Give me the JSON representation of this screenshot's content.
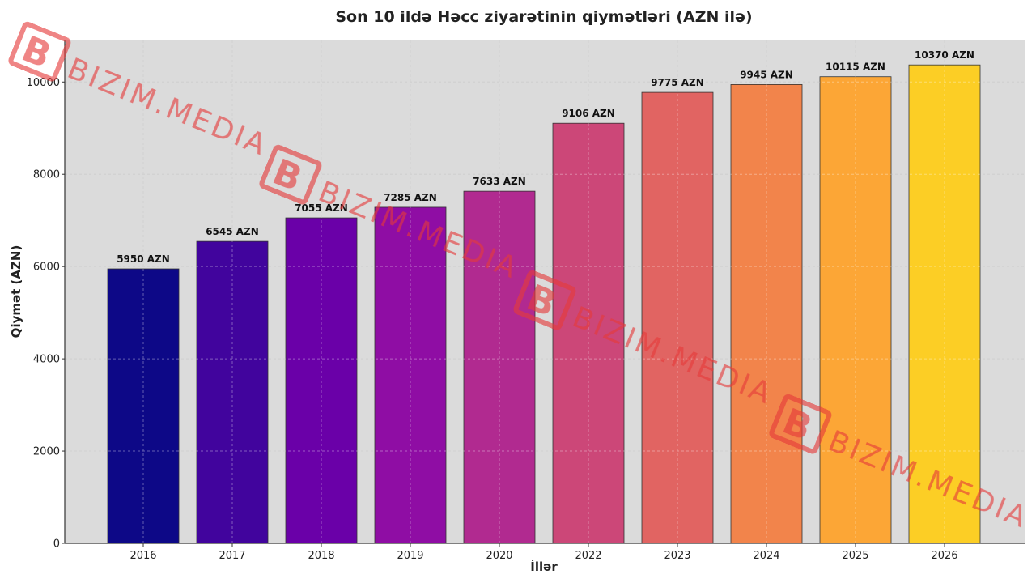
{
  "chart_data": {
    "type": "bar",
    "title": "Son 10 ildə Həcc ziyarətinin qiymətləri (AZN ilə)",
    "xlabel": "İllər",
    "ylabel": "Qiymət (AZN)",
    "categories": [
      "2016",
      "2017",
      "2018",
      "2019",
      "2020",
      "2022",
      "2023",
      "2024",
      "2025",
      "2026"
    ],
    "values": [
      5950,
      6545,
      7055,
      7285,
      7633,
      9106,
      9775,
      9945,
      10115,
      10370
    ],
    "data_labels": [
      "5950 AZN",
      "6545 AZN",
      "7055 AZN",
      "7285 AZN",
      "7633 AZN",
      "9106 AZN",
      "9775 AZN",
      "9945 AZN",
      "10115 AZN",
      "10370 AZN"
    ],
    "yticks": [
      0,
      2000,
      4000,
      6000,
      8000,
      10000
    ],
    "ylim": [
      0,
      10900
    ],
    "grid": true,
    "colors": [
      "#0d0887",
      "#41049d",
      "#6a00a8",
      "#8f0da4",
      "#b12a90",
      "#cc4778",
      "#e16462",
      "#f2844b",
      "#fca636",
      "#fcce25"
    ],
    "plot_background": "#dbdbdb"
  },
  "watermark": {
    "text": "BIZIM.MEDIA",
    "logo_letter": "B",
    "color": "#e53a3a"
  }
}
